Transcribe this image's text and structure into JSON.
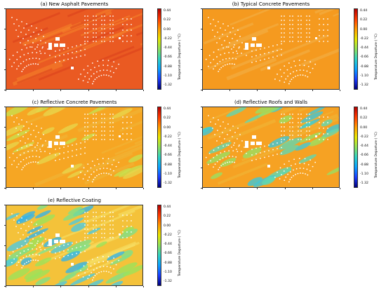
{
  "chart_data": {
    "type": "heatmap",
    "panels": [
      {
        "title": "(a) New Asphalt Pavements",
        "base_color": "#ea5a22",
        "accent": "#f47d24",
        "scheme": "asphalt"
      },
      {
        "title": "(b) Typical Concrete Pavements",
        "base_color": "#f59a1f",
        "accent": "#f7b43a",
        "scheme": "typical"
      },
      {
        "title": "(c) Reflective Concrete Pavements",
        "base_color": "#f6a623",
        "accent": "#e8d54a",
        "scheme": "reflective_pave"
      },
      {
        "title": "(d) Reflective Roofs and Walls",
        "base_color": "#f6a223",
        "accent": "#5fd3b8",
        "scheme": "roofs"
      },
      {
        "title": "(e) Reflective Coating",
        "base_color": "#f4c23a",
        "accent": "#4ec9e0",
        "scheme": "coating"
      }
    ],
    "colorbar": {
      "label": "Temperature Departure ( °C)",
      "ticks": [
        "0.44",
        "0.22",
        "0.00",
        "-0.22",
        "-0.44",
        "-0.66",
        "-0.88",
        "-1.10",
        "-1.32"
      ],
      "colors": [
        "#b20000",
        "#ff3b00",
        "#ff9a00",
        "#e6e600",
        "#8ee05a",
        "#2ed1c4",
        "#0aa0ff",
        "#1a3cff",
        "#00007a"
      ]
    }
  }
}
